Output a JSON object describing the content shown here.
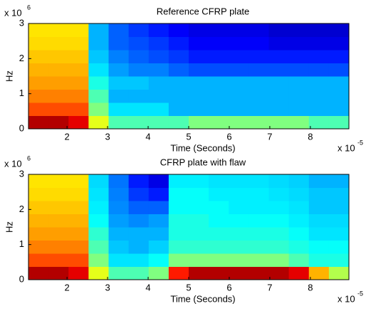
{
  "chart_data": [
    {
      "type": "heatmap",
      "title": "Reference CFRP plate",
      "xlabel": "Time (Seconds)",
      "ylabel": "Hz",
      "x_multiplier": {
        "base": "x 10",
        "exponent": "-5"
      },
      "y_multiplier": {
        "base": "x 10",
        "exponent": "6"
      },
      "xlim": [
        1.05,
        8.95
      ],
      "ylim": [
        0,
        3
      ],
      "xticks": [
        2,
        3,
        4,
        5,
        6,
        7,
        8
      ],
      "yticks": [
        0,
        1,
        2,
        3
      ],
      "colormap": "jet",
      "zlim": [
        0,
        1
      ],
      "z": [
        [
          0.95,
          0.95,
          0.9,
          0.6,
          0.45,
          0.45,
          0.45,
          0.45,
          0.5,
          0.5,
          0.5,
          0.5,
          0.5,
          0.5,
          0.45,
          0.45
        ],
        [
          0.8,
          0.8,
          0.8,
          0.5,
          0.35,
          0.35,
          0.35,
          0.3,
          0.3,
          0.3,
          0.3,
          0.3,
          0.3,
          0.3,
          0.3,
          0.3
        ],
        [
          0.75,
          0.75,
          0.75,
          0.45,
          0.3,
          0.3,
          0.3,
          0.3,
          0.3,
          0.3,
          0.3,
          0.3,
          0.3,
          0.3,
          0.3,
          0.3
        ],
        [
          0.72,
          0.72,
          0.72,
          0.4,
          0.32,
          0.32,
          0.3,
          0.3,
          0.3,
          0.3,
          0.3,
          0.3,
          0.3,
          0.3,
          0.3,
          0.3
        ],
        [
          0.7,
          0.7,
          0.7,
          0.35,
          0.28,
          0.25,
          0.25,
          0.22,
          0.2,
          0.2,
          0.2,
          0.2,
          0.2,
          0.2,
          0.2,
          0.2
        ],
        [
          0.68,
          0.68,
          0.68,
          0.32,
          0.25,
          0.22,
          0.2,
          0.18,
          0.15,
          0.15,
          0.15,
          0.15,
          0.15,
          0.15,
          0.15,
          0.15
        ],
        [
          0.66,
          0.66,
          0.66,
          0.3,
          0.22,
          0.2,
          0.18,
          0.15,
          0.12,
          0.12,
          0.12,
          0.12,
          0.1,
          0.1,
          0.1,
          0.1
        ],
        [
          0.65,
          0.65,
          0.65,
          0.3,
          0.22,
          0.18,
          0.15,
          0.12,
          0.1,
          0.1,
          0.1,
          0.1,
          0.08,
          0.08,
          0.08,
          0.08
        ]
      ]
    },
    {
      "type": "heatmap",
      "title": "CFRP plate with flaw",
      "xlabel": "Time (Seconds)",
      "ylabel": "Hz",
      "x_multiplier": {
        "base": "x 10",
        "exponent": "-5"
      },
      "y_multiplier": {
        "base": "x 10",
        "exponent": "6"
      },
      "xlim": [
        1.05,
        8.95
      ],
      "ylim": [
        0,
        3
      ],
      "xticks": [
        2,
        3,
        4,
        5,
        6,
        7,
        8
      ],
      "yticks": [
        0,
        1,
        2,
        3
      ],
      "colormap": "jet",
      "zlim": [
        0,
        1
      ],
      "z": [
        [
          0.95,
          0.95,
          0.9,
          0.6,
          0.45,
          0.45,
          0.5,
          0.85,
          0.95,
          0.95,
          0.95,
          0.95,
          0.95,
          0.9,
          0.7,
          0.55
        ],
        [
          0.8,
          0.8,
          0.8,
          0.5,
          0.35,
          0.35,
          0.38,
          0.5,
          0.5,
          0.5,
          0.5,
          0.5,
          0.5,
          0.45,
          0.4,
          0.4
        ],
        [
          0.75,
          0.75,
          0.75,
          0.45,
          0.32,
          0.3,
          0.33,
          0.42,
          0.42,
          0.42,
          0.42,
          0.42,
          0.42,
          0.4,
          0.38,
          0.38
        ],
        [
          0.72,
          0.72,
          0.72,
          0.42,
          0.3,
          0.3,
          0.3,
          0.4,
          0.4,
          0.4,
          0.4,
          0.4,
          0.4,
          0.38,
          0.35,
          0.35
        ],
        [
          0.7,
          0.7,
          0.7,
          0.38,
          0.28,
          0.26,
          0.28,
          0.4,
          0.4,
          0.38,
          0.38,
          0.38,
          0.38,
          0.36,
          0.34,
          0.34
        ],
        [
          0.68,
          0.68,
          0.68,
          0.36,
          0.26,
          0.22,
          0.22,
          0.38,
          0.38,
          0.38,
          0.36,
          0.36,
          0.36,
          0.35,
          0.32,
          0.32
        ],
        [
          0.66,
          0.66,
          0.66,
          0.35,
          0.25,
          0.18,
          0.15,
          0.38,
          0.38,
          0.36,
          0.36,
          0.36,
          0.35,
          0.34,
          0.32,
          0.32
        ],
        [
          0.65,
          0.65,
          0.65,
          0.34,
          0.24,
          0.15,
          0.1,
          0.36,
          0.36,
          0.35,
          0.35,
          0.35,
          0.34,
          0.33,
          0.3,
          0.3
        ]
      ]
    }
  ]
}
